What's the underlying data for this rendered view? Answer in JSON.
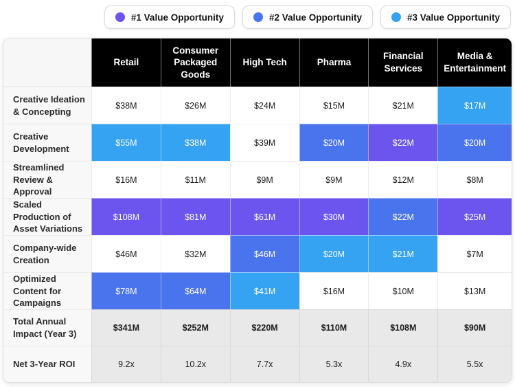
{
  "legend": {
    "items": [
      {
        "label": "#1 Value Opportunity",
        "color": "#6C55EE"
      },
      {
        "label": "#2 Value Opportunity",
        "color": "#4A73EE"
      },
      {
        "label": "#3 Value Opportunity",
        "color": "#35A3F2"
      }
    ]
  },
  "colors": {
    "tier1_purple": "#6C55EE",
    "tier2_blue": "#4A73EE",
    "tier3_light_blue": "#35A3F2",
    "header_bg": "#000000",
    "summary_bg": "#e9e9e9",
    "label_col_bg": "#f8f8f8"
  },
  "chart_data": {
    "type": "table",
    "title": "",
    "legend": [
      "#1 Value Opportunity",
      "#2 Value Opportunity",
      "#3 Value Opportunity"
    ],
    "legend_position": "top-right",
    "columns": [
      "Retail",
      "Consumer Packaged Goods",
      "High Tech",
      "Pharma",
      "Financial Services",
      "Media & Entertainment"
    ],
    "rows": [
      {
        "label": "Creative Ideation & Concepting",
        "values": [
          "$38M",
          "$26M",
          "$24M",
          "$15M",
          "$21M",
          "$17M"
        ],
        "tiers": [
          0,
          0,
          0,
          0,
          0,
          3
        ]
      },
      {
        "label": "Creative Development",
        "values": [
          "$55M",
          "$38M",
          "$39M",
          "$20M",
          "$22M",
          "$20M"
        ],
        "tiers": [
          3,
          3,
          0,
          2,
          1,
          2
        ]
      },
      {
        "label": "Streamlined Review & Approval",
        "values": [
          "$16M",
          "$11M",
          "$9M",
          "$9M",
          "$12M",
          "$8M"
        ],
        "tiers": [
          0,
          0,
          0,
          0,
          0,
          0
        ]
      },
      {
        "label": "Scaled Production of Asset Variations",
        "values": [
          "$108M",
          "$81M",
          "$61M",
          "$30M",
          "$22M",
          "$25M"
        ],
        "tiers": [
          1,
          1,
          1,
          1,
          2,
          1
        ]
      },
      {
        "label": "Company-wide Creation",
        "values": [
          "$46M",
          "$32M",
          "$46M",
          "$20M",
          "$21M",
          "$7M"
        ],
        "tiers": [
          0,
          0,
          2,
          3,
          3,
          0
        ]
      },
      {
        "label": "Optimized Content for Campaigns",
        "values": [
          "$78M",
          "$64M",
          "$41M",
          "$16M",
          "$10M",
          "$13M"
        ],
        "tiers": [
          2,
          2,
          3,
          0,
          0,
          0
        ]
      }
    ],
    "summary_rows": [
      {
        "label": "Total Annual Impact (Year 3)",
        "values": [
          "$341M",
          "$252M",
          "$220M",
          "$110M",
          "$108M",
          "$90M"
        ],
        "bold": true
      },
      {
        "label": "Net 3-Year ROI",
        "values": [
          "9.2x",
          "10.2x",
          "7.7x",
          "5.3x",
          "4.9x",
          "5.5x"
        ],
        "bold": false
      }
    ],
    "tier_meaning": {
      "1": "#1 Value Opportunity",
      "2": "#2 Value Opportunity",
      "3": "#3 Value Opportunity",
      "0": "no highlight"
    }
  }
}
